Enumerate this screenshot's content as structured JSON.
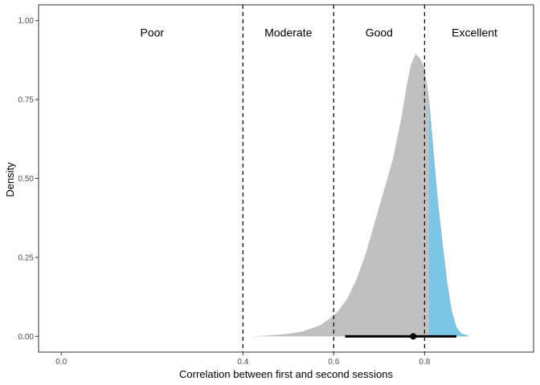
{
  "chart_data": {
    "type": "area",
    "title": "",
    "xlabel": "Correlation between first and second sessions",
    "ylabel": "Density",
    "xlim": [
      -0.05,
      1.04
    ],
    "ylim": [
      -0.05,
      1.05
    ],
    "x_ticks": [
      {
        "value": 0.0,
        "label": "0.0"
      },
      {
        "value": 0.4,
        "label": "0.4"
      },
      {
        "value": 0.6,
        "label": "0.6"
      },
      {
        "value": 0.8,
        "label": "0.8"
      }
    ],
    "y_ticks": [
      {
        "value": 0.0,
        "label": "0.00"
      },
      {
        "value": 0.25,
        "label": "0.25"
      },
      {
        "value": 0.5,
        "label": "0.50"
      },
      {
        "value": 0.75,
        "label": "0.75"
      },
      {
        "value": 1.0,
        "label": "1.00"
      }
    ],
    "grid": false,
    "thresholds": [
      0.4,
      0.6,
      0.8
    ],
    "regions": [
      {
        "label": "Poor",
        "x": 0.2,
        "y": 0.95
      },
      {
        "label": "Moderate",
        "x": 0.5,
        "y": 0.95
      },
      {
        "label": "Good",
        "x": 0.7,
        "y": 0.95
      },
      {
        "label": "Excellent",
        "x": 0.91,
        "y": 0.95
      }
    ],
    "highlight_from": 0.81,
    "colors": {
      "density_fill": "#c0c0c0",
      "highlight_fill": "#7ac6e6",
      "interval": "#000000",
      "threshold_line": "#000000"
    },
    "density": {
      "x": [
        0.42,
        0.46,
        0.5,
        0.53,
        0.55,
        0.57,
        0.59,
        0.61,
        0.63,
        0.65,
        0.67,
        0.69,
        0.71,
        0.73,
        0.75,
        0.76,
        0.77,
        0.78,
        0.79,
        0.8,
        0.81,
        0.82,
        0.83,
        0.84,
        0.85,
        0.86,
        0.87,
        0.88,
        0.9
      ],
      "y": [
        0.0,
        0.003,
        0.008,
        0.015,
        0.025,
        0.035,
        0.055,
        0.08,
        0.12,
        0.18,
        0.26,
        0.36,
        0.46,
        0.56,
        0.7,
        0.79,
        0.86,
        0.895,
        0.88,
        0.85,
        0.75,
        0.58,
        0.42,
        0.29,
        0.17,
        0.08,
        0.03,
        0.01,
        0.0
      ]
    },
    "interval": {
      "low": 0.625,
      "high": 0.87,
      "point": 0.775
    }
  }
}
